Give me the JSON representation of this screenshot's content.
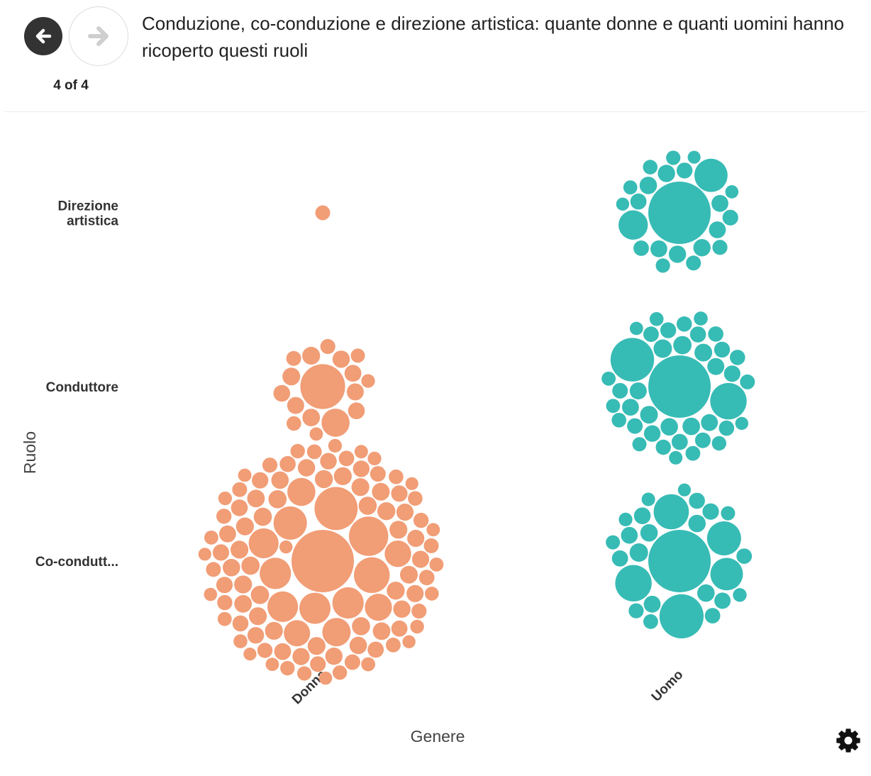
{
  "header": {
    "title": "Conduzione, co-conduzione e direzione artistica: quante donne e quanti uomini hanno ricoperto questi ruoli",
    "pager": "4 of 4"
  },
  "nav": {
    "back_icon": "arrow-left-icon",
    "next_icon": "arrow-right-icon"
  },
  "settings": {
    "icon": "gear-icon"
  },
  "chart_data": {
    "type": "bubble-matrix",
    "xlabel": "Genere",
    "ylabel": "Ruolo",
    "x_categories": [
      "Donna",
      "Uomo"
    ],
    "y_categories": [
      "Direzione artistica",
      "Conduttore",
      "Co-condutt..."
    ],
    "y_category_lines": [
      [
        "Direzione",
        "artistica"
      ],
      [
        "Conduttore"
      ],
      [
        "Co-condutt..."
      ]
    ],
    "colors": {
      "Donna": "#f19d76",
      "Uomo": "#37bbb5"
    },
    "cells": [
      {
        "x": "Donna",
        "y": "Direzione artistica",
        "bubble_count": 1
      },
      {
        "x": "Uomo",
        "y": "Direzione artistica",
        "bubble_count": 23
      },
      {
        "x": "Donna",
        "y": "Conduttore",
        "bubble_count": 17
      },
      {
        "x": "Uomo",
        "y": "Conduttore",
        "bubble_count": 40
      },
      {
        "x": "Donna",
        "y": "Co-condutt...",
        "bubble_count": 106
      },
      {
        "x": "Uomo",
        "y": "Co-condutt...",
        "bubble_count": 27
      }
    ]
  }
}
